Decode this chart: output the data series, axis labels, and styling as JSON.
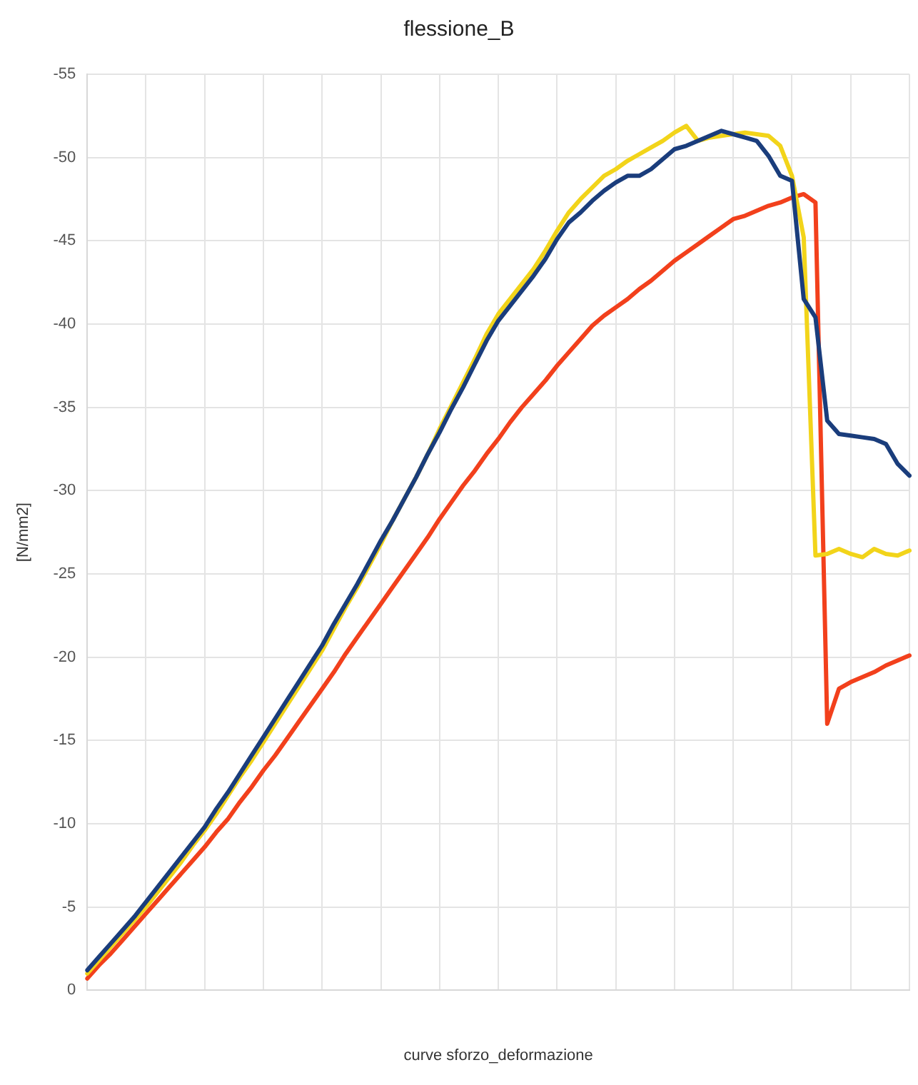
{
  "chart_data": {
    "type": "line",
    "title": "flessione_B",
    "xlabel": "curve sforzo_deformazione",
    "ylabel": "[N/mm2]",
    "categories": [
      null,
      null,
      null,
      null,
      null,
      null,
      null,
      null,
      null,
      null,
      null,
      null,
      null,
      null,
      null,
      null,
      null,
      null,
      null,
      null,
      null,
      null,
      null,
      null,
      null,
      null,
      null,
      null,
      null,
      null,
      null,
      null,
      null,
      null,
      null,
      null,
      null,
      null,
      null,
      null,
      null,
      null,
      null,
      null,
      null,
      null,
      null,
      null,
      null,
      null,
      null,
      null,
      null,
      null,
      null,
      null,
      null,
      null,
      null,
      null,
      null,
      null,
      null,
      null,
      null,
      null,
      null,
      null,
      null,
      null,
      null
    ],
    "ylim": [
      0,
      -55
    ],
    "yticks": [
      0,
      -5,
      -10,
      -15,
      -20,
      -25,
      -30,
      -35,
      -40,
      -45,
      -50,
      -55
    ],
    "grid": true,
    "legend": false,
    "marker": "none",
    "line_style": "solid",
    "series": [
      {
        "color": "#f2401c",
        "values": [
          -0.7,
          -1.5,
          -2.2,
          -3.0,
          -3.8,
          -4.6,
          -5.4,
          -6.2,
          -7.0,
          -7.8,
          -8.6,
          -9.5,
          -10.3,
          -11.3,
          -12.2,
          -13.2,
          -14.1,
          -15.1,
          -16.1,
          -17.1,
          -18.1,
          -19.1,
          -20.2,
          -21.2,
          -22.2,
          -23.2,
          -24.2,
          -25.2,
          -26.2,
          -27.2,
          -28.3,
          -29.3,
          -30.3,
          -31.2,
          -32.2,
          -33.1,
          -34.1,
          -35.0,
          -35.8,
          -36.6,
          -37.5,
          -38.3,
          -39.1,
          -39.9,
          -40.5,
          -41.0,
          -41.5,
          -42.1,
          -42.6,
          -43.2,
          -43.8,
          -44.3,
          -44.8,
          -45.3,
          -45.8,
          -46.3,
          -46.5,
          -46.8,
          -47.1,
          -47.3,
          -47.6,
          -47.8,
          -47.3,
          -16.0,
          -18.1,
          -18.5,
          -18.8,
          -19.1,
          -19.5,
          -19.8,
          -20.1
        ]
      },
      {
        "color": "#f2d41a",
        "values": [
          -1.0,
          -1.8,
          -2.6,
          -3.4,
          -4.2,
          -5.0,
          -5.9,
          -6.8,
          -7.7,
          -8.7,
          -9.6,
          -10.6,
          -11.7,
          -12.8,
          -13.8,
          -14.9,
          -16.0,
          -17.1,
          -18.2,
          -19.3,
          -20.4,
          -21.7,
          -23.0,
          -24.2,
          -25.5,
          -26.8,
          -28.2,
          -29.5,
          -30.8,
          -32.2,
          -33.7,
          -35.1,
          -36.5,
          -37.9,
          -39.4,
          -40.6,
          -41.5,
          -42.4,
          -43.3,
          -44.4,
          -45.6,
          -46.7,
          -47.5,
          -48.2,
          -48.9,
          -49.3,
          -49.8,
          -50.2,
          -50.6,
          -51.0,
          -51.5,
          -51.9,
          -51.0,
          -51.2,
          -51.3,
          -51.4,
          -51.5,
          -51.4,
          -51.3,
          -50.7,
          -48.9,
          -45.2,
          -26.1,
          -26.2,
          -26.5,
          -26.2,
          -26.0,
          -26.5,
          -26.2,
          -26.1,
          -26.4
        ]
      },
      {
        "color": "#1a3d7c",
        "values": [
          -1.2,
          -2.0,
          -2.8,
          -3.6,
          -4.4,
          -5.3,
          -6.2,
          -7.1,
          -8.0,
          -8.9,
          -9.8,
          -10.9,
          -11.9,
          -13.0,
          -14.1,
          -15.2,
          -16.3,
          -17.4,
          -18.5,
          -19.6,
          -20.7,
          -22.0,
          -23.2,
          -24.4,
          -25.7,
          -27.0,
          -28.2,
          -29.5,
          -30.8,
          -32.2,
          -33.5,
          -34.9,
          -36.2,
          -37.6,
          -39.0,
          -40.2,
          -41.1,
          -42.0,
          -42.9,
          -43.9,
          -45.1,
          -46.1,
          -46.7,
          -47.4,
          -48.0,
          -48.5,
          -48.9,
          -48.9,
          -49.3,
          -49.9,
          -50.5,
          -50.7,
          -51.0,
          -51.3,
          -51.6,
          -51.4,
          -51.2,
          -51.0,
          -50.1,
          -48.9,
          -48.6,
          -41.5,
          -40.4,
          -34.2,
          -33.4,
          -33.3,
          -33.2,
          -33.1,
          -32.8,
          -31.6,
          -30.9
        ]
      }
    ]
  }
}
